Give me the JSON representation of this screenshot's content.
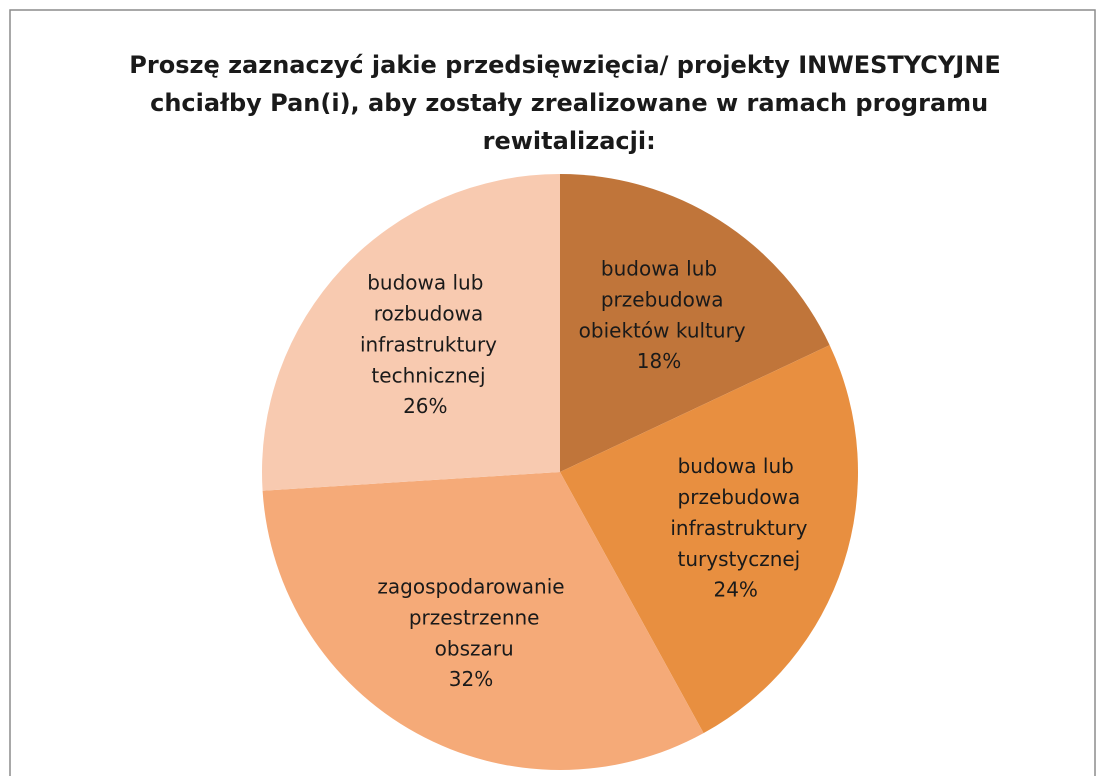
{
  "chart_data": {
    "type": "pie",
    "title": "Proszę zaznaczyć jakie przedsięwzięcia/ projekty INWESTYCYJNE chciałby Pan(i), aby zostały zrealizowane w ramach programu rewitalizacji:",
    "categories": [
      "budowa lub przebudowa obiektów kultury",
      "budowa lub przebudowa infrastruktury turystycznej",
      "zagospodarowanie przestrzenne obszaru",
      "budowa lub rozbudowa infrastruktury technicznej"
    ],
    "values": [
      18,
      24,
      32,
      26
    ],
    "value_labels": [
      "18%",
      "24%",
      "32%",
      "26%"
    ],
    "colors": [
      "#c0753a",
      "#e88f40",
      "#f5aa78",
      "#f8cab0"
    ]
  }
}
